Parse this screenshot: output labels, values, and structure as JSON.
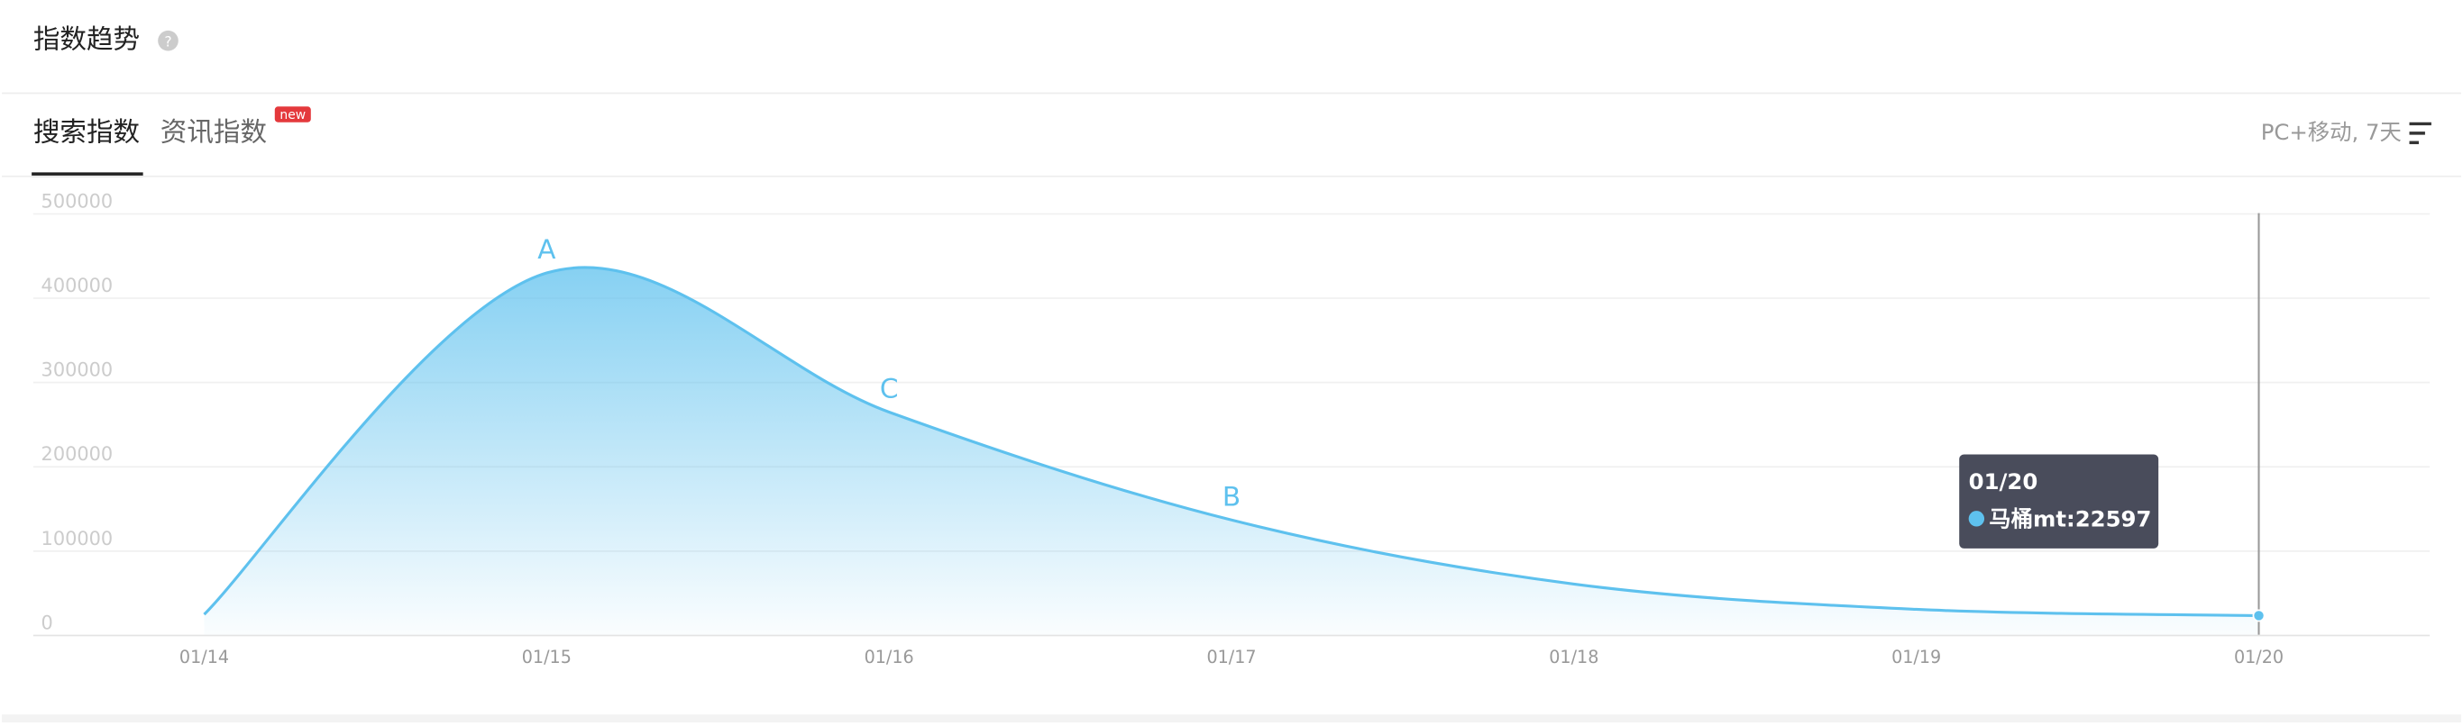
{
  "header": {
    "title": "指数趋势"
  },
  "tabs": [
    {
      "label": "搜索指数"
    },
    {
      "label": "资讯指数",
      "badge": "new"
    }
  ],
  "filter": "PC+移动, 7天",
  "chart_data": {
    "type": "line",
    "categories": [
      "01/14",
      "01/15",
      "01/16",
      "01/17",
      "01/18",
      "01/19",
      "01/20"
    ],
    "series": [
      {
        "name": "马桶mt",
        "color": "#5ec1ee",
        "values": [
          24000,
          429000,
          264000,
          136000,
          60000,
          30000,
          22597
        ]
      }
    ],
    "ylim": [
      0,
      500000
    ],
    "yticks": [
      0,
      100000,
      200000,
      300000,
      400000,
      500000
    ],
    "grid": true,
    "annotations": [
      {
        "text": "A",
        "category": 1
      },
      {
        "text": "C",
        "category": 2
      },
      {
        "text": "B",
        "category": 3
      }
    ],
    "tooltip": {
      "category": 6
    }
  }
}
